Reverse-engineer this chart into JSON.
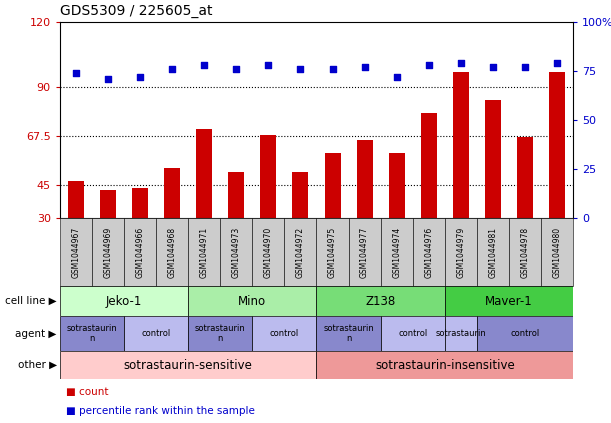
{
  "title": "GDS5309 / 225605_at",
  "samples": [
    "GSM1044967",
    "GSM1044969",
    "GSM1044966",
    "GSM1044968",
    "GSM1044971",
    "GSM1044973",
    "GSM1044970",
    "GSM1044972",
    "GSM1044975",
    "GSM1044977",
    "GSM1044974",
    "GSM1044976",
    "GSM1044979",
    "GSM1044981",
    "GSM1044978",
    "GSM1044980"
  ],
  "bar_values": [
    47,
    43,
    44,
    53,
    71,
    51,
    68,
    51,
    60,
    66,
    60,
    78,
    97,
    84,
    67,
    97
  ],
  "dot_values": [
    74,
    71,
    72,
    76,
    78,
    76,
    78,
    76,
    76,
    77,
    72,
    78,
    79,
    77,
    77,
    79
  ],
  "bar_color": "#cc0000",
  "dot_color": "#0000cc",
  "ylim_left": [
    30,
    120
  ],
  "ylim_right": [
    0,
    100
  ],
  "yticks_left": [
    30,
    45,
    67.5,
    90,
    120
  ],
  "ytick_labels_left": [
    "30",
    "45",
    "67.5",
    "90",
    "120"
  ],
  "yticks_right": [
    0,
    25,
    50,
    75,
    100
  ],
  "ytick_labels_right": [
    "0",
    "25",
    "50",
    "75",
    "100%"
  ],
  "hlines": [
    45,
    67.5,
    90
  ],
  "cell_line_labels": [
    "Jeko-1",
    "Mino",
    "Z138",
    "Maver-1"
  ],
  "cell_line_spans_cols": [
    [
      0,
      3
    ],
    [
      4,
      7
    ],
    [
      8,
      11
    ],
    [
      12,
      15
    ]
  ],
  "cell_line_colors": [
    "#ccffcc",
    "#aaeea8",
    "#77dd77",
    "#44cc44"
  ],
  "agent_defs": [
    [
      0,
      2,
      "sotrastaurin\nn",
      "#8888cc"
    ],
    [
      2,
      4,
      "control",
      "#bbbbee"
    ],
    [
      4,
      6,
      "sotrastaurin\nn",
      "#8888cc"
    ],
    [
      6,
      8,
      "control",
      "#bbbbee"
    ],
    [
      8,
      10,
      "sotrastaurin\nn",
      "#8888cc"
    ],
    [
      10,
      12,
      "control",
      "#bbbbee"
    ],
    [
      12,
      13,
      "sotrastaurin",
      "#bbbbee"
    ],
    [
      13,
      16,
      "control",
      "#8888cc"
    ]
  ],
  "other_defs": [
    [
      0,
      8,
      "sotrastaurin-sensitive",
      "#ffcccc"
    ],
    [
      8,
      16,
      "sotrastaurin-insensitive",
      "#ee9999"
    ]
  ],
  "legend_count": "count",
  "legend_pct": "percentile rank within the sample",
  "sample_box_color": "#cccccc",
  "fig_width": 6.11,
  "fig_height": 4.23,
  "dpi": 100
}
